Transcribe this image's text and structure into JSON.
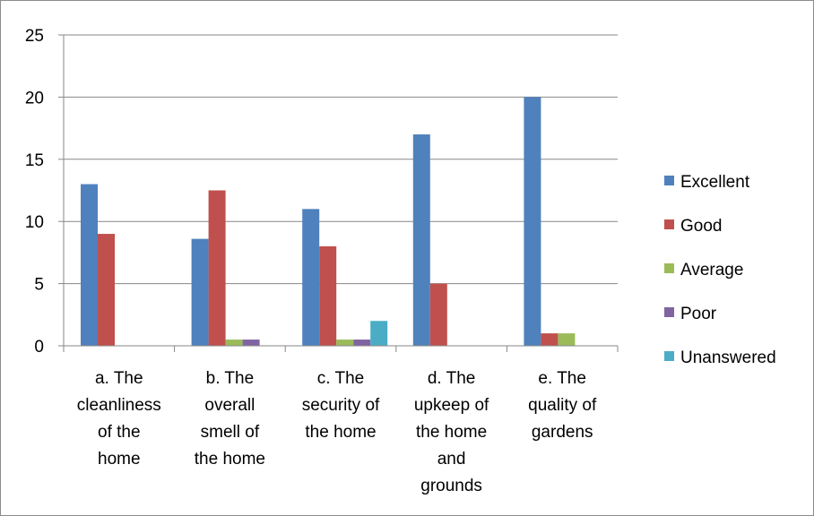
{
  "chart_data": {
    "type": "bar",
    "categories": [
      [
        "a. The",
        "cleanliness",
        "of the",
        "home"
      ],
      [
        "b. The",
        "overall",
        "smell of",
        "the home"
      ],
      [
        "c. The",
        "security of",
        "the home"
      ],
      [
        "d. The",
        "upkeep of",
        "the home",
        "and",
        "grounds"
      ],
      [
        "e. The",
        "quality of",
        "gardens"
      ]
    ],
    "series": [
      {
        "name": "Excellent",
        "color": "#4F81BD",
        "values": [
          13,
          8.6,
          11,
          17,
          20
        ]
      },
      {
        "name": "Good",
        "color": "#C0504D",
        "values": [
          9,
          12.5,
          8,
          5,
          1
        ]
      },
      {
        "name": "Average",
        "color": "#9BBB59",
        "values": [
          0,
          0.5,
          0.5,
          0,
          1
        ]
      },
      {
        "name": "Poor",
        "color": "#8064A2",
        "values": [
          0,
          0.5,
          0.5,
          0,
          0
        ]
      },
      {
        "name": "Unanswered",
        "color": "#4BACC6",
        "values": [
          0,
          0,
          2,
          0,
          0
        ]
      }
    ],
    "ylim": [
      0,
      25
    ],
    "yticks": [
      0,
      5,
      10,
      15,
      20,
      25
    ],
    "grid": true,
    "legend_position": "right"
  }
}
